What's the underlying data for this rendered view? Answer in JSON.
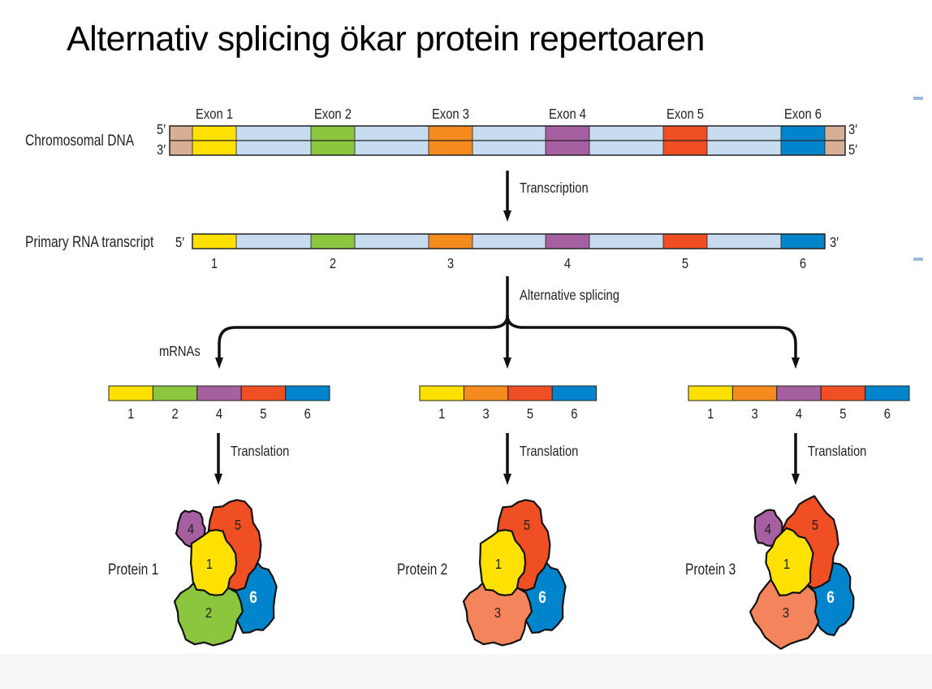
{
  "title": "Alternativ splicing ökar protein repertoaren",
  "dna": {
    "label": "Chromosomal DNA",
    "top_left": "5′",
    "bottom_left": "3′",
    "top_right": "3′",
    "bottom_right": "5′",
    "exon_labels": [
      "Exon 1",
      "Exon 2",
      "Exon 3",
      "Exon 4",
      "Exon 5",
      "Exon 6"
    ]
  },
  "transcription_label": "Transcription",
  "rna": {
    "label": "Primary RNA transcript",
    "left_end": "5′",
    "right_end": "3′",
    "numbers": [
      "1",
      "2",
      "3",
      "4",
      "5",
      "6"
    ]
  },
  "splicing_label": "Alternative splicing",
  "mrnas_label": "mRNAs",
  "mrnas": [
    {
      "exons": [
        "1",
        "2",
        "4",
        "5",
        "6"
      ]
    },
    {
      "exons": [
        "1",
        "3",
        "5",
        "6"
      ]
    },
    {
      "exons": [
        "1",
        "3",
        "4",
        "5",
        "6"
      ]
    }
  ],
  "translation_label": "Translation",
  "proteins": [
    {
      "label": "Protein 1",
      "domains": [
        "4",
        "5",
        "1",
        "2",
        "6"
      ]
    },
    {
      "label": "Protein 2",
      "domains": [
        "5",
        "1",
        "3",
        "6"
      ]
    },
    {
      "label": "Protein 3",
      "domains": [
        "4",
        "5",
        "1",
        "3",
        "6"
      ]
    }
  ],
  "colors": {
    "exon1": "#ffe100",
    "exon2": "#8cc63f",
    "exon3": "#f58a1f",
    "exon4": "#a65fa0",
    "exon5": "#f04e23",
    "exon6": "#0085cc",
    "intron": "#c7dcf0",
    "flank": "#d8af94",
    "protein3": "#f4845c"
  }
}
